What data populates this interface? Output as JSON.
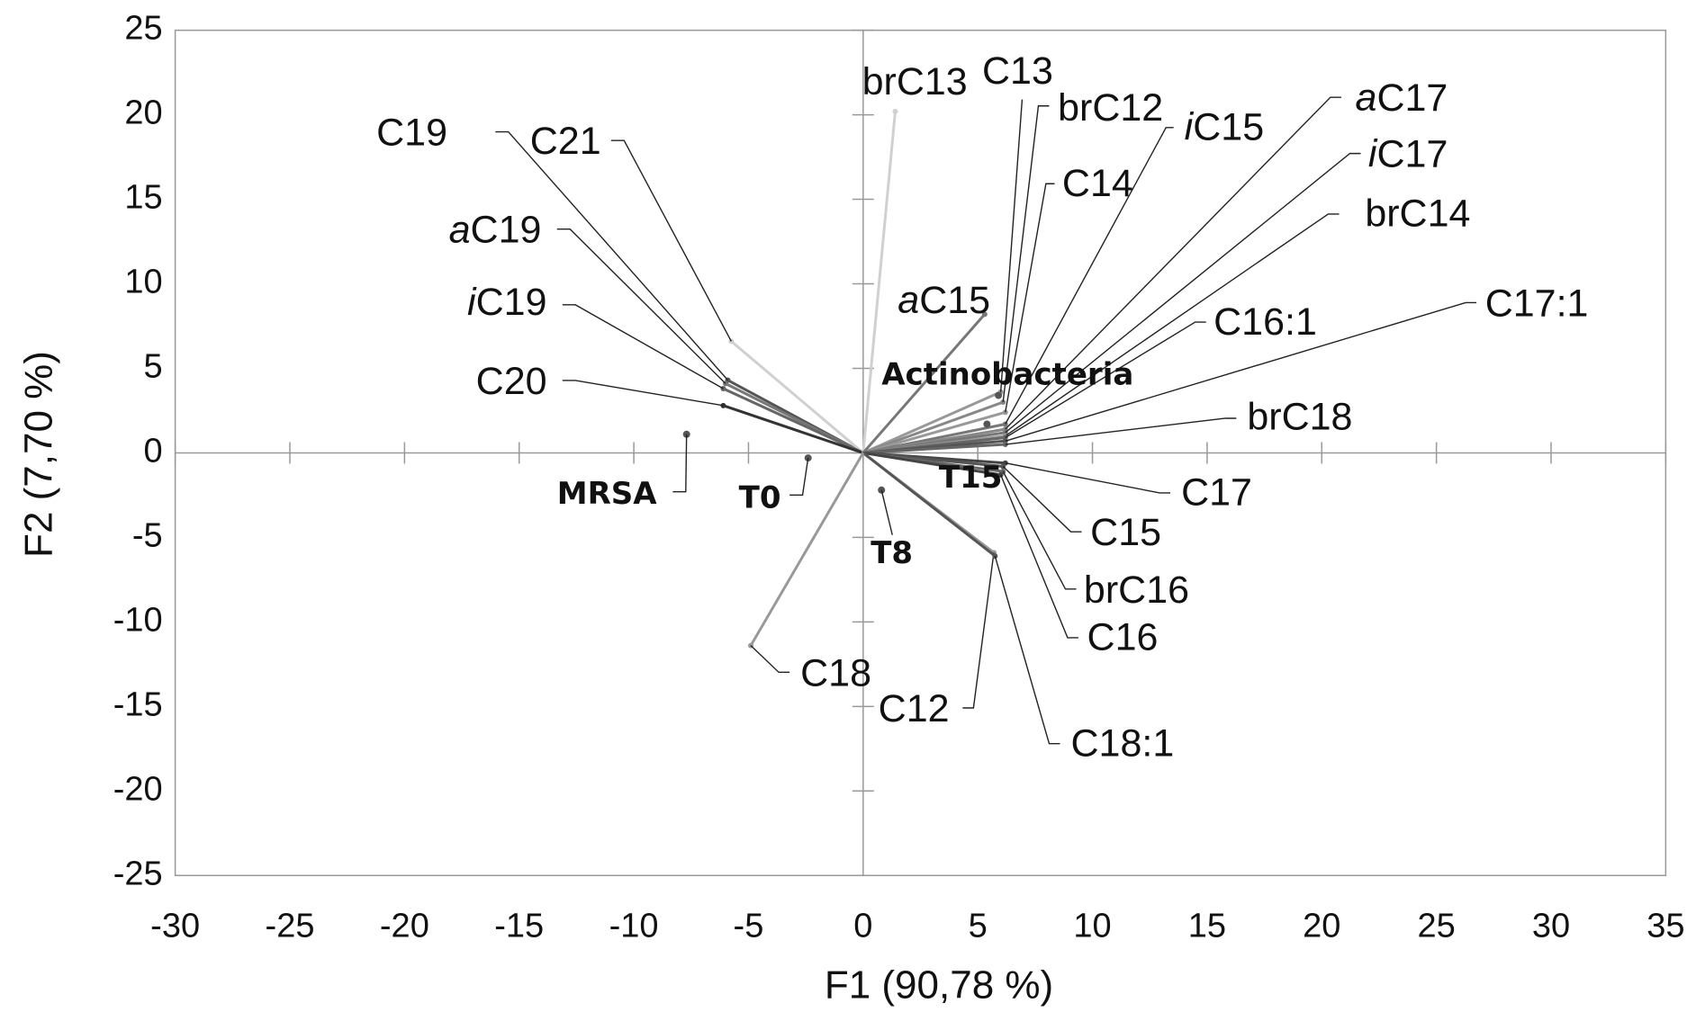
{
  "chart_data": {
    "type": "biplot",
    "x_label": "F1 (90,78 %)",
    "y_label": "F2 (7,70 %)",
    "xlim": [
      -30,
      35
    ],
    "ylim": [
      -25,
      25
    ],
    "xticks": [
      -30,
      -25,
      -20,
      -15,
      -10,
      -5,
      0,
      5,
      10,
      15,
      20,
      25,
      30,
      35
    ],
    "yticks": [
      -25,
      -20,
      -15,
      -10,
      -5,
      0,
      5,
      10,
      15,
      20,
      25
    ],
    "vectors": [
      {
        "label": "C19",
        "x": -5.9,
        "y": 4.3,
        "color": "#555555"
      },
      {
        "label": "C21",
        "x": -5.75,
        "y": 6.6,
        "color": "#d0d0d0"
      },
      {
        "label": "aC19",
        "x": -6.0,
        "y": 4.1,
        "color": "#777777"
      },
      {
        "label": "iC19",
        "x": -6.1,
        "y": 3.8,
        "color": "#666666"
      },
      {
        "label": "C20",
        "x": -6.1,
        "y": 2.8,
        "color": "#333333"
      },
      {
        "label": "brC13",
        "x": 1.4,
        "y": 20.2,
        "color": "#d0d0d0"
      },
      {
        "label": "C13",
        "x": 6.0,
        "y": 3.6,
        "color": "#999999"
      },
      {
        "label": "brC12",
        "x": 6.1,
        "y": 3.0,
        "color": "#888888"
      },
      {
        "label": "C14",
        "x": 6.2,
        "y": 2.4,
        "color": "#999999"
      },
      {
        "label": "iC15",
        "x": 6.2,
        "y": 1.7,
        "color": "#777777"
      },
      {
        "label": "aC17",
        "x": 6.2,
        "y": 1.4,
        "color": "#888888"
      },
      {
        "label": "iC17",
        "x": 6.2,
        "y": 1.2,
        "color": "#777777"
      },
      {
        "label": "brC14",
        "x": 6.2,
        "y": 1.0,
        "color": "#999999"
      },
      {
        "label": "C16:1",
        "x": 6.2,
        "y": 0.9,
        "color": "#666666"
      },
      {
        "label": "C17:1",
        "x": 6.2,
        "y": 0.7,
        "color": "#555555"
      },
      {
        "label": "brC18",
        "x": 6.2,
        "y": 0.5,
        "color": "#666666"
      },
      {
        "label": "aC15",
        "x": 5.3,
        "y": 8.2,
        "color": "#777777"
      },
      {
        "label": "C17",
        "x": 6.2,
        "y": -0.6,
        "color": "#444444"
      },
      {
        "label": "C15",
        "x": 6.1,
        "y": -0.8,
        "color": "#555555"
      },
      {
        "label": "brC16",
        "x": 6.1,
        "y": -1.1,
        "color": "#666666"
      },
      {
        "label": "C16",
        "x": 6.0,
        "y": -1.3,
        "color": "#444444"
      },
      {
        "label": "C12",
        "x": 5.7,
        "y": -5.9,
        "color": "#999999"
      },
      {
        "label": "C18:1",
        "x": 5.75,
        "y": -6.1,
        "color": "#555555"
      },
      {
        "label": "C18",
        "x": -4.9,
        "y": -11.4,
        "color": "#999999"
      }
    ],
    "points": [
      {
        "label": "MRSA",
        "x": -7.7,
        "y": 1.1
      },
      {
        "label": "T0",
        "x": -2.4,
        "y": -0.3
      },
      {
        "label": "T8",
        "x": 0.8,
        "y": -2.2
      },
      {
        "label": "T15",
        "x": 5.4,
        "y": 1.7
      },
      {
        "label": "Actinobacteria",
        "x": 5.9,
        "y": 3.4
      }
    ]
  }
}
